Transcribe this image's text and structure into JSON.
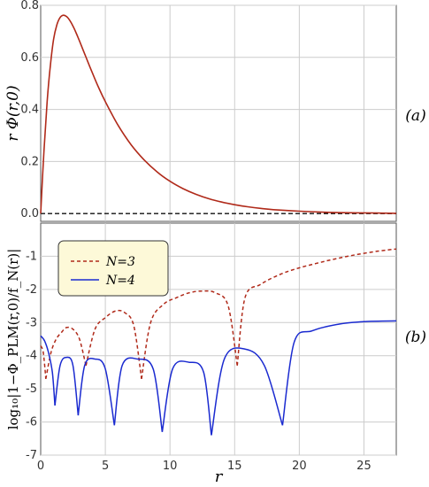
{
  "chart_data": [
    {
      "panel": "(a)",
      "type": "line",
      "ylabel": "r Φ(r,0)",
      "xlim": [
        0,
        27.5
      ],
      "ylim": [
        -0.03,
        0.8
      ],
      "x_ticks": [
        "0",
        "5",
        "10",
        "15",
        "20",
        "25"
      ],
      "y_ticks": [
        "0.0",
        "0.2",
        "0.4",
        "0.6",
        "0.8"
      ],
      "grid": true,
      "color": "#b02a1a",
      "reference_line": 0,
      "series": [
        {
          "x": [
            0,
            0.25,
            0.5,
            0.75,
            1,
            1.25,
            1.5,
            1.75,
            2,
            2.25,
            2.5,
            2.75,
            3,
            3.5,
            4,
            4.5,
            5,
            6,
            7,
            8,
            9,
            10,
            11,
            12,
            13,
            14,
            15,
            16,
            17,
            18,
            20,
            22,
            24,
            26,
            27.5
          ],
          "values": [
            0,
            0.24,
            0.43,
            0.57,
            0.67,
            0.725,
            0.753,
            0.762,
            0.757,
            0.742,
            0.72,
            0.693,
            0.663,
            0.601,
            0.54,
            0.482,
            0.43,
            0.338,
            0.264,
            0.206,
            0.16,
            0.124,
            0.096,
            0.074,
            0.057,
            0.044,
            0.034,
            0.026,
            0.02,
            0.015,
            0.009,
            0.005,
            0.003,
            0.002,
            0.001
          ]
        }
      ]
    },
    {
      "panel": "(b)",
      "type": "line",
      "xlabel": "r",
      "ylabel": "log₁₀|1−Φ_PLM(r,0)/f_N(r)|",
      "xlim": [
        0,
        27.5
      ],
      "ylim": [
        -7,
        0
      ],
      "x_ticks": [
        "0",
        "5",
        "10",
        "15",
        "20",
        "25"
      ],
      "y_ticks": [
        "-1",
        "-2",
        "-3",
        "-4",
        "-5",
        "-6",
        "-7"
      ],
      "grid": true,
      "legend": "top-left",
      "series": [
        {
          "name": "N=3",
          "style": "dashed",
          "color": "#b02a1a",
          "segments": [
            {
              "x": [
                0,
                0.2,
                0.4
              ],
              "values": [
                -3.7,
                -3.9,
                -4.7
              ]
            },
            {
              "x": [
                0.4,
                0.8,
                1.2,
                1.6,
                2.0,
                2.5,
                3.0,
                3.5
              ],
              "values": [
                -4.7,
                -3.9,
                -3.5,
                -3.3,
                -3.15,
                -3.2,
                -3.5,
                -4.3
              ]
            },
            {
              "x": [
                3.5,
                4.2,
                5.0,
                5.8,
                6.5,
                7.2,
                7.8
              ],
              "values": [
                -4.3,
                -3.2,
                -2.85,
                -2.65,
                -2.7,
                -3.1,
                -4.7
              ]
            },
            {
              "x": [
                7.8,
                8.5,
                9.5,
                10.5,
                11.5,
                12.5,
                13.5,
                14.5,
                15.2
              ],
              "values": [
                -4.7,
                -3.0,
                -2.45,
                -2.25,
                -2.1,
                -2.05,
                -2.1,
                -2.5,
                -4.3
              ]
            },
            {
              "x": [
                15.2,
                15.8,
                17,
                18.5,
                20,
                22,
                24,
                26,
                27.5
              ],
              "values": [
                -4.3,
                -2.25,
                -1.85,
                -1.55,
                -1.35,
                -1.15,
                -0.98,
                -0.85,
                -0.78
              ]
            }
          ]
        },
        {
          "name": "N=4",
          "style": "solid",
          "color": "#1a2ad0",
          "segments": [
            {
              "x": [
                0,
                0.3,
                0.6,
                0.9,
                1.1
              ],
              "values": [
                -3.4,
                -3.55,
                -3.9,
                -4.5,
                -5.5
              ]
            },
            {
              "x": [
                1.1,
                1.5,
                2.0,
                2.5,
                2.9
              ],
              "values": [
                -5.5,
                -4.3,
                -4.05,
                -4.3,
                -5.8
              ]
            },
            {
              "x": [
                2.9,
                3.4,
                4.2,
                5.0,
                5.7
              ],
              "values": [
                -5.8,
                -4.3,
                -4.1,
                -4.4,
                -6.1
              ]
            },
            {
              "x": [
                5.7,
                6.3,
                7.5,
                8.7,
                9.4
              ],
              "values": [
                -6.1,
                -4.3,
                -4.1,
                -4.4,
                -6.3
              ]
            },
            {
              "x": [
                9.4,
                10.2,
                11.5,
                12.6,
                13.2
              ],
              "values": [
                -6.3,
                -4.4,
                -4.2,
                -4.5,
                -6.4
              ]
            },
            {
              "x": [
                13.2,
                14.2,
                15.8,
                17.3,
                18.7
              ],
              "values": [
                -6.4,
                -4.1,
                -3.8,
                -4.3,
                -6.1
              ]
            },
            {
              "x": [
                18.7,
                19.6,
                21,
                23,
                25,
                27.5
              ],
              "values": [
                -6.1,
                -3.6,
                -3.25,
                -3.05,
                -2.97,
                -2.95
              ]
            }
          ]
        }
      ]
    }
  ],
  "panel_labels": [
    "(a)",
    "(b)"
  ],
  "legend_entries": [
    {
      "label": "N=3"
    },
    {
      "label": "N=4"
    }
  ],
  "colors": {
    "grid": "#cccccc",
    "axis": "#555555",
    "legend_bg": "#fdf9d8"
  }
}
